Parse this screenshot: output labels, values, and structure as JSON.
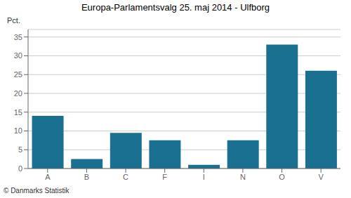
{
  "chart_data": {
    "type": "bar",
    "title": "Europa-Parlamentsvalg 25. maj 2014 - Ulfborg",
    "categories": [
      "A",
      "B",
      "C",
      "F",
      "I",
      "N",
      "O",
      "V"
    ],
    "values": [
      14.0,
      2.5,
      9.5,
      7.5,
      1.0,
      7.5,
      33.0,
      26.0
    ],
    "color": "#1a7090",
    "ylabel": "Pct.",
    "ylim": [
      0,
      37
    ],
    "yticks": [
      0,
      5,
      10,
      15,
      20,
      25,
      30,
      35
    ],
    "grid": true,
    "annotations": [
      "© Danmarks Statistik"
    ]
  }
}
